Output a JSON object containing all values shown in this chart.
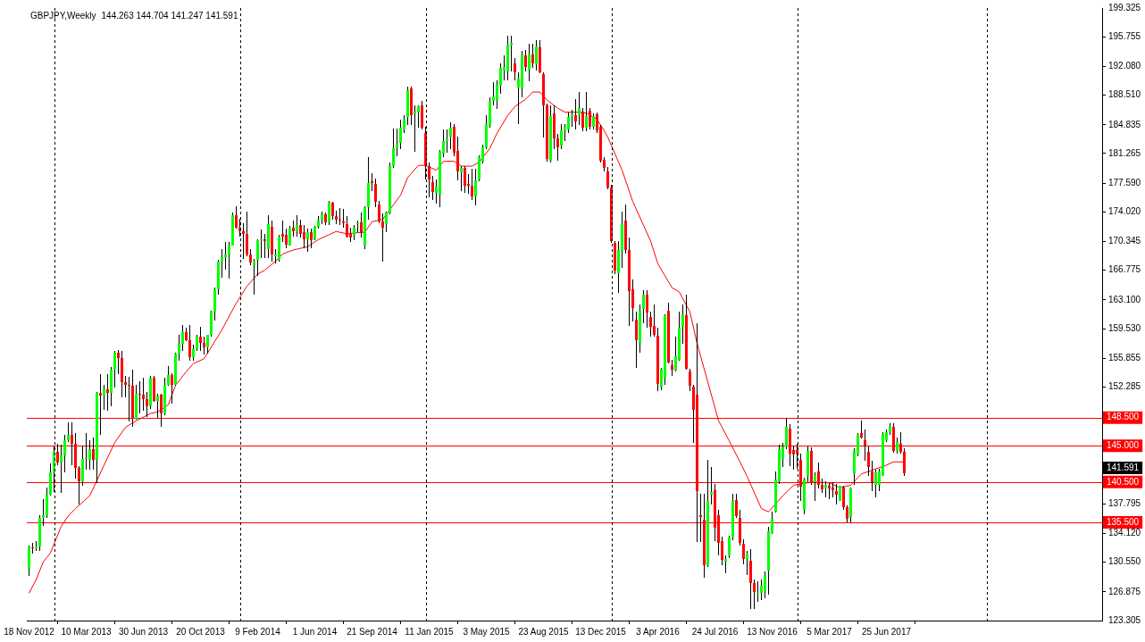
{
  "chart_data": {
    "type": "candlestick",
    "title": "GBPJPY,Weekly",
    "subtitle": "144.263 144.704 141.247 141.591",
    "x": [
      "2012-11-18",
      "2012-11-25",
      "2012-12-02",
      "2012-12-09",
      "2012-12-16",
      "2012-12-23",
      "2012-12-30",
      "2013-01-06",
      "2013-01-13",
      "2013-01-20",
      "2013-01-27",
      "2013-02-03",
      "2013-02-10",
      "2013-02-17",
      "2013-02-24",
      "2013-03-03",
      "2013-03-10",
      "2013-03-17",
      "2013-03-24",
      "2013-03-31",
      "2013-04-07",
      "2013-04-14",
      "2013-04-21",
      "2013-04-28",
      "2013-05-05",
      "2013-05-12",
      "2013-05-19",
      "2013-05-26",
      "2013-06-02",
      "2013-06-09",
      "2013-06-16",
      "2013-06-23",
      "2013-06-30",
      "2013-07-07",
      "2013-07-14",
      "2013-07-21",
      "2013-07-28",
      "2013-08-04",
      "2013-08-11",
      "2013-08-18",
      "2013-08-25",
      "2013-09-01",
      "2013-09-08",
      "2013-09-15",
      "2013-09-22",
      "2013-09-29",
      "2013-10-06",
      "2013-10-13",
      "2013-10-20",
      "2013-10-27",
      "2013-11-03",
      "2013-11-10",
      "2013-11-17",
      "2013-11-24",
      "2013-12-01",
      "2013-12-08",
      "2013-12-15",
      "2013-12-22",
      "2013-12-29",
      "2014-01-05",
      "2014-01-12",
      "2014-01-19",
      "2014-01-26",
      "2014-02-02",
      "2014-02-09",
      "2014-02-16",
      "2014-02-23",
      "2014-03-02",
      "2014-03-09",
      "2014-03-16",
      "2014-03-23",
      "2014-03-30",
      "2014-04-06",
      "2014-04-13",
      "2014-04-20",
      "2014-04-27",
      "2014-05-04",
      "2014-05-11",
      "2014-05-18",
      "2014-05-25",
      "2014-06-01",
      "2014-06-08",
      "2014-06-15",
      "2014-06-22",
      "2014-06-29",
      "2014-07-06",
      "2014-07-13",
      "2014-07-20",
      "2014-07-27",
      "2014-08-03",
      "2014-08-10",
      "2014-08-17",
      "2014-08-24",
      "2014-08-31",
      "2014-09-07",
      "2014-09-14",
      "2014-09-21",
      "2014-09-28",
      "2014-10-05",
      "2014-10-12",
      "2014-10-19",
      "2014-10-26",
      "2014-11-02",
      "2014-11-09",
      "2014-11-16",
      "2014-11-23",
      "2014-11-30",
      "2014-12-07",
      "2014-12-14",
      "2014-12-21",
      "2014-12-28",
      "2015-01-04",
      "2015-01-11",
      "2015-01-18",
      "2015-01-25",
      "2015-02-01",
      "2015-02-08",
      "2015-02-15",
      "2015-02-22",
      "2015-03-01",
      "2015-03-08",
      "2015-03-15",
      "2015-03-22",
      "2015-03-29",
      "2015-04-05",
      "2015-04-12",
      "2015-04-19",
      "2015-04-26",
      "2015-05-03",
      "2015-05-10",
      "2015-05-17",
      "2015-05-24",
      "2015-05-31",
      "2015-06-07",
      "2015-06-14",
      "2015-06-21",
      "2015-06-28",
      "2015-07-05",
      "2015-07-12",
      "2015-07-19",
      "2015-07-26",
      "2015-08-02",
      "2015-08-09",
      "2015-08-16",
      "2015-08-23",
      "2015-08-30",
      "2015-09-06",
      "2015-09-13",
      "2015-09-20",
      "2015-09-27",
      "2015-10-04",
      "2015-10-11",
      "2015-10-18",
      "2015-10-25",
      "2015-11-01",
      "2015-11-08",
      "2015-11-15",
      "2015-11-22",
      "2015-11-29",
      "2015-12-06",
      "2015-12-13",
      "2015-12-20",
      "2015-12-27",
      "2016-01-03",
      "2016-01-10",
      "2016-01-17",
      "2016-01-24",
      "2016-01-31",
      "2016-02-07",
      "2016-02-14",
      "2016-02-21",
      "2016-02-28",
      "2016-03-06",
      "2016-03-13",
      "2016-03-20",
      "2016-03-27",
      "2016-04-03",
      "2016-04-10",
      "2016-04-17",
      "2016-04-24",
      "2016-05-01",
      "2016-05-08",
      "2016-05-15",
      "2016-05-22",
      "2016-05-29",
      "2016-06-05",
      "2016-06-12",
      "2016-06-19",
      "2016-06-26",
      "2016-07-03",
      "2016-07-10",
      "2016-07-17",
      "2016-07-24",
      "2016-07-31",
      "2016-08-07",
      "2016-08-14",
      "2016-08-21",
      "2016-08-28",
      "2016-09-04",
      "2016-09-11",
      "2016-09-18",
      "2016-09-25",
      "2016-10-02",
      "2016-10-09",
      "2016-10-16",
      "2016-10-23",
      "2016-10-30",
      "2016-11-06",
      "2016-11-13",
      "2016-11-20",
      "2016-11-27",
      "2016-12-04",
      "2016-12-11",
      "2016-12-18",
      "2016-12-25",
      "2017-01-01",
      "2017-01-08",
      "2017-01-15",
      "2017-01-22",
      "2017-01-29",
      "2017-02-05",
      "2017-02-12",
      "2017-02-19",
      "2017-02-26",
      "2017-03-05",
      "2017-03-12",
      "2017-03-19",
      "2017-03-26",
      "2017-04-02",
      "2017-04-09",
      "2017-04-16",
      "2017-04-23",
      "2017-04-30",
      "2017-05-07",
      "2017-05-14",
      "2017-05-21",
      "2017-05-28",
      "2017-06-04",
      "2017-06-11",
      "2017-06-18",
      "2017-06-25",
      "2017-07-02",
      "2017-07-09",
      "2017-07-16",
      "2017-07-23",
      "2017-07-30"
    ],
    "ohlc": [
      [
        129.7,
        132.6,
        128.8,
        132.4
      ],
      [
        132.4,
        133.0,
        131.6,
        132.3
      ],
      [
        132.3,
        133.2,
        131.9,
        132.5
      ],
      [
        132.5,
        136.4,
        131.9,
        136.1
      ],
      [
        136.1,
        138.4,
        135.0,
        136.4
      ],
      [
        136.4,
        139.8,
        136.0,
        138.9
      ],
      [
        138.9,
        142.8,
        138.8,
        141.7
      ],
      [
        141.7,
        145.0,
        139.3,
        144.3
      ],
      [
        144.3,
        145.3,
        142.6,
        142.9
      ],
      [
        142.9,
        145.1,
        139.1,
        143.8
      ],
      [
        143.8,
        146.3,
        141.7,
        145.7
      ],
      [
        145.7,
        147.9,
        145.5,
        146.3
      ],
      [
        146.3,
        147.9,
        142.6,
        145.2
      ],
      [
        145.2,
        146.6,
        140.9,
        142.3
      ],
      [
        142.3,
        142.5,
        137.7,
        140.6
      ],
      [
        140.6,
        145.0,
        140.0,
        143.4
      ],
      [
        143.4,
        146.6,
        142.0,
        143.5
      ],
      [
        143.3,
        145.7,
        142.0,
        144.6
      ],
      [
        144.6,
        146.0,
        142.0,
        143.3
      ],
      [
        143.3,
        151.7,
        140.4,
        151.6
      ],
      [
        151.6,
        153.9,
        146.4,
        151.2
      ],
      [
        151.2,
        152.6,
        149.5,
        152.0
      ],
      [
        152.0,
        153.9,
        149.4,
        151.6
      ],
      [
        151.6,
        154.8,
        149.9,
        154.4
      ],
      [
        154.4,
        156.8,
        152.2,
        156.5
      ],
      [
        156.5,
        156.9,
        153.9,
        155.9
      ],
      [
        155.9,
        156.8,
        151.0,
        152.9
      ],
      [
        152.9,
        153.7,
        151.0,
        152.6
      ],
      [
        152.6,
        153.6,
        148.0,
        152.5
      ],
      [
        152.5,
        154.4,
        147.3,
        148.4
      ],
      [
        148.4,
        152.6,
        148.2,
        151.4
      ],
      [
        151.4,
        153.0,
        149.0,
        151.3
      ],
      [
        151.3,
        153.4,
        149.3,
        150.8
      ],
      [
        150.8,
        151.7,
        148.6,
        149.9
      ],
      [
        149.9,
        153.7,
        149.6,
        153.5
      ],
      [
        153.5,
        153.7,
        150.4,
        150.6
      ],
      [
        150.6,
        151.4,
        148.5,
        151.2
      ],
      [
        151.3,
        151.5,
        147.3,
        149.0
      ],
      [
        149.0,
        153.4,
        148.8,
        152.6
      ],
      [
        152.6,
        154.9,
        152.5,
        153.8
      ],
      [
        153.8,
        154.0,
        150.2,
        152.6
      ],
      [
        152.6,
        156.6,
        152.5,
        156.4
      ],
      [
        156.4,
        158.8,
        155.5,
        157.7
      ],
      [
        157.7,
        160.0,
        156.8,
        159.1
      ],
      [
        159.1,
        159.7,
        158.0,
        158.1
      ],
      [
        158.1,
        160.0,
        155.5,
        156.0
      ],
      [
        156.0,
        157.6,
        155.5,
        157.0
      ],
      [
        157.0,
        158.8,
        156.8,
        158.5
      ],
      [
        158.5,
        159.8,
        156.8,
        157.8
      ],
      [
        157.8,
        158.5,
        156.3,
        157.2
      ],
      [
        157.2,
        158.8,
        156.4,
        158.8
      ],
      [
        158.8,
        161.8,
        158.6,
        161.6
      ],
      [
        161.6,
        164.6,
        160.5,
        164.4
      ],
      [
        164.4,
        168.1,
        163.7,
        167.9
      ],
      [
        167.9,
        169.4,
        165.9,
        168.4
      ],
      [
        168.4,
        170.3,
        166.9,
        168.7
      ],
      [
        168.7,
        170.3,
        165.8,
        169.9
      ],
      [
        169.9,
        174.0,
        169.8,
        173.6
      ],
      [
        173.6,
        174.7,
        171.9,
        172.1
      ],
      [
        172.1,
        173.2,
        171.0,
        171.6
      ],
      [
        171.6,
        172.6,
        168.2,
        171.3
      ],
      [
        171.3,
        174.1,
        168.5,
        168.7
      ],
      [
        168.7,
        169.4,
        167.4,
        167.7
      ],
      [
        167.4,
        168.2,
        163.8,
        167.9
      ],
      [
        168.1,
        170.6,
        166.1,
        170.5
      ],
      [
        170.5,
        171.8,
        168.3,
        170.6
      ],
      [
        170.6,
        171.3,
        168.3,
        170.4
      ],
      [
        169.4,
        173.6,
        168.3,
        172.5
      ],
      [
        172.2,
        172.9,
        167.9,
        168.7
      ],
      [
        168.5,
        169.4,
        167.6,
        168.7
      ],
      [
        168.1,
        171.2,
        167.8,
        171.0
      ],
      [
        171.3,
        173.0,
        170.3,
        171.0
      ],
      [
        171.2,
        172.0,
        169.5,
        170.0
      ],
      [
        169.9,
        172.3,
        169.8,
        172.0
      ],
      [
        172.1,
        173.0,
        171.0,
        171.6
      ],
      [
        171.6,
        173.6,
        171.0,
        172.4
      ],
      [
        172.4,
        173.1,
        170.8,
        171.3
      ],
      [
        171.5,
        172.4,
        169.5,
        170.6
      ],
      [
        170.6,
        171.9,
        169.1,
        171.5
      ],
      [
        171.5,
        171.9,
        169.5,
        170.5
      ],
      [
        170.6,
        172.3,
        170.5,
        172.2
      ],
      [
        172.2,
        173.5,
        171.9,
        173.0
      ],
      [
        173.1,
        174.1,
        172.5,
        173.7
      ],
      [
        173.7,
        173.9,
        172.4,
        172.7
      ],
      [
        172.7,
        175.4,
        172.4,
        175.2
      ],
      [
        175.2,
        175.3,
        173.1,
        173.5
      ],
      [
        173.5,
        174.2,
        172.5,
        173.1
      ],
      [
        173.1,
        174.5,
        172.4,
        172.9
      ],
      [
        172.8,
        174.4,
        172.1,
        172.6
      ],
      [
        172.5,
        173.5,
        170.8,
        171.0
      ],
      [
        171.4,
        172.1,
        170.3,
        170.9
      ],
      [
        171.2,
        172.4,
        170.5,
        172.1
      ],
      [
        172.5,
        173.0,
        171.5,
        172.6
      ],
      [
        172.7,
        173.9,
        170.8,
        171.5
      ],
      [
        169.8,
        174.7,
        169.4,
        174.6
      ],
      [
        174.6,
        180.8,
        173.1,
        177.6
      ],
      [
        177.8,
        178.8,
        176.6,
        177.6
      ],
      [
        177.5,
        178.2,
        174.6,
        175.3
      ],
      [
        175.0,
        175.4,
        172.6,
        172.8
      ],
      [
        172.8,
        173.8,
        167.9,
        172.1
      ],
      [
        172.5,
        174.1,
        171.5,
        173.9
      ],
      [
        173.9,
        180.1,
        173.7,
        179.7
      ],
      [
        179.7,
        184.4,
        179.5,
        181.9
      ],
      [
        182.0,
        184.4,
        180.9,
        182.5
      ],
      [
        182.6,
        185.5,
        181.8,
        184.5
      ],
      [
        184.3,
        186.0,
        183.8,
        185.6
      ],
      [
        185.8,
        189.6,
        184.8,
        189.1
      ],
      [
        189.3,
        189.6,
        184.8,
        186.0
      ],
      [
        186.3,
        187.3,
        181.5,
        186.5
      ],
      [
        186.4,
        187.3,
        184.5,
        187.1
      ],
      [
        187.3,
        187.8,
        184.2,
        184.5
      ],
      [
        183.8,
        184.6,
        178.1,
        179.7
      ],
      [
        179.7,
        180.1,
        175.8,
        178.0
      ],
      [
        177.7,
        178.5,
        175.5,
        176.5
      ],
      [
        176.4,
        178.0,
        175.1,
        177.2
      ],
      [
        176.2,
        181.7,
        174.6,
        181.5
      ],
      [
        181.3,
        184.2,
        180.8,
        182.8
      ],
      [
        182.8,
        184.2,
        181.4,
        183.2
      ],
      [
        183.4,
        185.1,
        181.8,
        184.5
      ],
      [
        184.6,
        184.9,
        180.9,
        181.4
      ],
      [
        181.6,
        183.4,
        177.9,
        179.0
      ],
      [
        178.9,
        179.7,
        176.6,
        179.5
      ],
      [
        179.5,
        179.7,
        176.4,
        177.3
      ],
      [
        177.5,
        178.7,
        176.3,
        177.3
      ],
      [
        177.3,
        179.4,
        175.5,
        175.9
      ],
      [
        175.9,
        179.4,
        174.8,
        177.9
      ],
      [
        178.0,
        181.0,
        177.8,
        180.8
      ],
      [
        180.3,
        182.4,
        180.0,
        182.0
      ],
      [
        182.0,
        186.0,
        181.8,
        184.9
      ],
      [
        184.7,
        188.2,
        184.5,
        187.8
      ],
      [
        187.8,
        190.1,
        187.3,
        188.4
      ],
      [
        187.9,
        190.3,
        186.8,
        189.8
      ],
      [
        189.7,
        192.5,
        188.7,
        191.9
      ],
      [
        191.6,
        193.5,
        190.4,
        192.0
      ],
      [
        191.5,
        195.9,
        190.4,
        194.8
      ],
      [
        194.7,
        195.9,
        191.5,
        195.0
      ],
      [
        192.5,
        193.1,
        190.4,
        191.3
      ],
      [
        189.5,
        191.4,
        184.9,
        190.6
      ],
      [
        189.4,
        194.0,
        188.2,
        193.6
      ],
      [
        193.5,
        194.1,
        191.5,
        192.0
      ],
      [
        191.7,
        194.9,
        190.2,
        193.6
      ],
      [
        193.6,
        194.9,
        191.9,
        192.4
      ],
      [
        192.3,
        195.3,
        191.6,
        194.6
      ],
      [
        194.5,
        195.3,
        191.2,
        191.4
      ],
      [
        191.1,
        191.4,
        183.3,
        187.2
      ],
      [
        187.3,
        187.5,
        180.3,
        180.6
      ],
      [
        180.4,
        187.2,
        180.1,
        185.9
      ],
      [
        186.2,
        187.3,
        181.8,
        183.1
      ],
      [
        183.1,
        183.7,
        180.4,
        182.0
      ],
      [
        182.3,
        184.9,
        181.8,
        184.1
      ],
      [
        184.1,
        184.9,
        182.8,
        184.6
      ],
      [
        184.3,
        186.4,
        183.8,
        185.8
      ],
      [
        185.8,
        186.7,
        184.6,
        186.1
      ],
      [
        186.0,
        188.0,
        184.2,
        185.3
      ],
      [
        186.0,
        188.9,
        184.8,
        186.9
      ],
      [
        186.5,
        186.9,
        184.0,
        184.5
      ],
      [
        184.5,
        188.9,
        184.0,
        185.9
      ],
      [
        186.6,
        186.9,
        184.3,
        184.6
      ],
      [
        184.6,
        186.2,
        184.3,
        185.9
      ],
      [
        186.1,
        186.4,
        183.8,
        184.1
      ],
      [
        184.6,
        184.8,
        180.2,
        180.4
      ],
      [
        180.5,
        180.8,
        179.0,
        179.5
      ],
      [
        179.1,
        179.6,
        176.8,
        177.1
      ],
      [
        177.0,
        177.4,
        170.2,
        170.4
      ],
      [
        170.2,
        170.4,
        166.3,
        166.8
      ],
      [
        166.4,
        170.4,
        164.0,
        169.3
      ],
      [
        169.2,
        174.1,
        167.1,
        172.5
      ],
      [
        173.0,
        175.0,
        168.9,
        169.3
      ],
      [
        169.3,
        170.9,
        159.9,
        164.2
      ],
      [
        164.4,
        165.6,
        160.4,
        162.1
      ],
      [
        160.7,
        161.6,
        154.7,
        158.1
      ],
      [
        157.8,
        162.5,
        156.5,
        161.8
      ],
      [
        162.0,
        164.3,
        160.2,
        163.7
      ],
      [
        163.8,
        164.3,
        159.7,
        161.5
      ],
      [
        161.0,
        161.6,
        158.5,
        159.8
      ],
      [
        159.9,
        162.5,
        158.5,
        158.8
      ],
      [
        158.7,
        159.6,
        151.8,
        152.7
      ],
      [
        152.3,
        154.7,
        151.9,
        154.6
      ],
      [
        153.5,
        161.3,
        152.6,
        161.2
      ],
      [
        161.8,
        162.8,
        155.2,
        155.3
      ],
      [
        155.0,
        155.7,
        153.7,
        154.4
      ],
      [
        154.3,
        158.6,
        154.2,
        156.1
      ],
      [
        155.7,
        161.7,
        155.6,
        159.7
      ],
      [
        159.8,
        162.5,
        157.7,
        161.3
      ],
      [
        161.2,
        163.8,
        154.4,
        154.5
      ],
      [
        154.2,
        154.5,
        151.8,
        152.5
      ],
      [
        152.3,
        152.6,
        145.4,
        149.5
      ],
      [
        151.3,
        160.2,
        133.1,
        139.4
      ],
      [
        136.4,
        139.0,
        133.1,
        136.2
      ],
      [
        135.8,
        139.0,
        128.6,
        130.2
      ],
      [
        130.2,
        143.3,
        129.9,
        138.2
      ],
      [
        138.9,
        142.4,
        137.7,
        139.3
      ],
      [
        139.5,
        140.3,
        133.2,
        134.8
      ],
      [
        136.4,
        137.1,
        131.4,
        133.0
      ],
      [
        133.2,
        133.7,
        130.2,
        130.8
      ],
      [
        130.6,
        131.4,
        129.2,
        131.0
      ],
      [
        131.4,
        133.8,
        131.1,
        133.6
      ],
      [
        133.6,
        139.0,
        133.3,
        138.2
      ],
      [
        138.3,
        139.0,
        136.0,
        136.3
      ],
      [
        136.1,
        137.0,
        132.6,
        133.0
      ],
      [
        132.8,
        133.4,
        130.3,
        130.9
      ],
      [
        130.9,
        132.0,
        129.0,
        131.6
      ],
      [
        130.7,
        132.2,
        124.7,
        128.0
      ],
      [
        128.0,
        128.4,
        124.7,
        126.9
      ],
      [
        126.7,
        128.2,
        125.6,
        126.9
      ],
      [
        126.7,
        128.4,
        125.9,
        127.6
      ],
      [
        127.0,
        129.4,
        126.1,
        129.0
      ],
      [
        129.5,
        134.9,
        126.5,
        134.4
      ],
      [
        134.2,
        136.8,
        134.0,
        135.9
      ],
      [
        136.8,
        141.8,
        136.7,
        140.8
      ],
      [
        140.6,
        145.1,
        140.3,
        144.6
      ],
      [
        143.4,
        145.4,
        142.4,
        144.9
      ],
      [
        144.9,
        148.5,
        144.6,
        147.3
      ],
      [
        147.1,
        147.7,
        142.5,
        144.0
      ],
      [
        144.5,
        145.0,
        142.0,
        143.9
      ],
      [
        144.5,
        145.2,
        142.1,
        144.0
      ],
      [
        143.3,
        144.0,
        138.2,
        139.9
      ],
      [
        137.1,
        141.0,
        136.5,
        140.8
      ],
      [
        141.3,
        144.9,
        140.5,
        144.4
      ],
      [
        144.4,
        144.8,
        140.1,
        140.4
      ],
      [
        140.5,
        141.7,
        138.1,
        141.4
      ],
      [
        141.8,
        142.9,
        139.7,
        140.1
      ],
      [
        140.1,
        140.9,
        139.2,
        139.6
      ],
      [
        139.7,
        140.6,
        138.6,
        140.1
      ],
      [
        140.0,
        140.4,
        138.4,
        139.7
      ],
      [
        139.8,
        140.5,
        138.6,
        139.5
      ],
      [
        139.4,
        140.3,
        137.7,
        138.9
      ],
      [
        138.3,
        140.0,
        138.2,
        139.9
      ],
      [
        139.8,
        140.0,
        137.0,
        137.4
      ],
      [
        137.4,
        137.6,
        135.5,
        135.9
      ],
      [
        136.2,
        139.8,
        135.5,
        139.7
      ],
      [
        141.6,
        144.7,
        140.1,
        144.4
      ],
      [
        143.9,
        146.6,
        143.7,
        146.3
      ],
      [
        146.6,
        148.1,
        145.9,
        146.0
      ],
      [
        145.7,
        147.0,
        143.1,
        145.0
      ],
      [
        144.2,
        144.9,
        141.3,
        142.4
      ],
      [
        141.8,
        143.1,
        139.4,
        140.5
      ],
      [
        140.1,
        142.0,
        138.6,
        141.7
      ],
      [
        140.1,
        142.1,
        139.4,
        141.8
      ],
      [
        141.4,
        146.7,
        141.3,
        146.5
      ],
      [
        145.7,
        147.0,
        145.5,
        146.7
      ],
      [
        146.7,
        147.8,
        146.3,
        147.4
      ],
      [
        147.4,
        147.8,
        144.1,
        144.4
      ],
      [
        144.4,
        146.0,
        144.0,
        145.5
      ],
      [
        145.2,
        146.7,
        144.0,
        144.2
      ],
      [
        144.263,
        144.704,
        141.247,
        141.591
      ]
    ],
    "series": [
      {
        "type": "line",
        "color": "#ff0000",
        "x": [
          "2012-11-18",
          "2012-12-02",
          "2012-12-16",
          "2012-12-30",
          "2013-01-20",
          "2013-02-03",
          "2013-02-17",
          "2013-03-17",
          "2013-03-31",
          "2013-04-14",
          "2013-05-05",
          "2013-05-26",
          "2013-06-16",
          "2013-07-14",
          "2013-07-28",
          "2013-08-18",
          "2013-09-01",
          "2013-09-22",
          "2013-10-06",
          "2013-10-27",
          "2013-12-01",
          "2013-12-29",
          "2014-01-19",
          "2014-02-09",
          "2014-02-23",
          "2014-03-16",
          "2014-03-30",
          "2014-04-20",
          "2014-05-18",
          "2014-06-08",
          "2014-06-29",
          "2014-07-13",
          "2014-08-03",
          "2014-08-17",
          "2014-09-07",
          "2014-09-21",
          "2014-10-12",
          "2014-10-26",
          "2014-11-16",
          "2014-11-30",
          "2014-12-21",
          "2015-01-04",
          "2015-01-25",
          "2015-02-08",
          "2015-03-01",
          "2015-03-15",
          "2015-04-05",
          "2015-04-19",
          "2015-05-10",
          "2015-05-24",
          "2015-06-14",
          "2015-06-28",
          "2015-07-19",
          "2015-08-02",
          "2015-08-16",
          "2015-08-30",
          "2015-09-20",
          "2015-10-04",
          "2015-11-01",
          "2015-11-15",
          "2015-12-06",
          "2015-12-20",
          "2015-12-27",
          "2016-01-24",
          "2016-02-14",
          "2016-03-20",
          "2016-04-03",
          "2016-05-01",
          "2016-05-15",
          "2016-06-05",
          "2016-06-19",
          "2016-07-10",
          "2016-07-31",
          "2016-08-21",
          "2016-09-11",
          "2016-09-25",
          "2016-10-23",
          "2016-11-06",
          "2016-12-04",
          "2016-12-25",
          "2017-01-29",
          "2017-03-05",
          "2017-03-26",
          "2017-04-16",
          "2017-05-07",
          "2017-06-04",
          "2017-06-25",
          "2017-07-09",
          "2017-07-30"
        ],
        "values": [
          126.7,
          128.4,
          130.6,
          131.7,
          135.0,
          136.3,
          137.2,
          138.8,
          140.7,
          142.6,
          145.4,
          147.3,
          148.1,
          149.0,
          149.2,
          150.1,
          152.5,
          154.2,
          155.2,
          155.8,
          159.4,
          162.7,
          164.8,
          166.3,
          166.8,
          167.9,
          168.8,
          169.3,
          169.7,
          170.6,
          171.2,
          171.6,
          171.3,
          171.4,
          171.5,
          172.8,
          173.1,
          174.3,
          176.1,
          178.3,
          179.8,
          179.8,
          179.2,
          180.3,
          180.3,
          179.7,
          179.7,
          180.2,
          181.9,
          183.8,
          186.0,
          187.1,
          188.0,
          188.9,
          188.9,
          187.9,
          186.9,
          186.4,
          186.4,
          186.3,
          185.5,
          184.1,
          183.3,
          179.2,
          175.3,
          170.4,
          167.6,
          164.6,
          164.1,
          161.6,
          157.7,
          152.9,
          148.1,
          145.6,
          143.0,
          141.2,
          137.2,
          136.8,
          138.8,
          140.1,
          140.5,
          140.4,
          139.8,
          140.1,
          141.5,
          null,
          142.6,
          143.0,
          143.0
        ]
      }
    ],
    "xlim": [
      "2012-11-13T15:00",
      "2018-08-21T15:00"
    ],
    "xticks": [
      {
        "value": "2012-11-18",
        "label": "18 Nov 2012"
      },
      {
        "value": "2013-03-10",
        "label": "10 Mar 2013"
      },
      {
        "value": "2013-06-30",
        "label": "30 Jun 2013"
      },
      {
        "value": "2013-10-20",
        "label": "20 Oct 2013"
      },
      {
        "value": "2014-02-09",
        "label": "9 Feb 2014"
      },
      {
        "value": "2014-06-01",
        "label": "1 Jun 2014"
      },
      {
        "value": "2014-09-21",
        "label": "21 Sep 2014"
      },
      {
        "value": "2015-01-11",
        "label": "11 Jan 2015"
      },
      {
        "value": "2015-05-03",
        "label": "3 May 2015"
      },
      {
        "value": "2015-08-23",
        "label": "23 Aug 2015"
      },
      {
        "value": "2015-12-13",
        "label": "13 Dec 2015"
      },
      {
        "value": "2016-04-03",
        "label": "3 Apr 2016"
      },
      {
        "value": "2016-07-24",
        "label": "24 Jul 2016"
      },
      {
        "value": "2016-11-13",
        "label": "13 Nov 2016"
      },
      {
        "value": "2017-03-05",
        "label": "5 Mar 2017"
      },
      {
        "value": "2017-06-25",
        "label": "25 Jun 2017"
      }
    ],
    "ylim": [
      123.305,
      199.325
    ],
    "yticks": [
      123.305,
      126.875,
      {
        "value": 130.55,
        "label": "130.550"
      },
      {
        "value": 134.12,
        "label": "134.120"
      },
      137.795,
      152.285,
      155.855,
      {
        "value": 159.53,
        "label": "159.530"
      },
      {
        "value": 163.1,
        "label": "163.100"
      },
      166.775,
      170.345,
      {
        "value": 174.02,
        "label": "174.020"
      },
      {
        "value": 177.59,
        "label": "177.590"
      },
      181.265,
      184.835,
      {
        "value": 188.51,
        "label": "188.510"
      },
      {
        "value": 192.08,
        "label": "192.080"
      },
      195.755,
      199.325
    ],
    "ref_lines": [
      {
        "axis": "y",
        "value": 148.5,
        "label": "148.500",
        "color": "#ff0000"
      },
      {
        "axis": "y",
        "value": 145.0,
        "label": "145.000",
        "color": "#ff0000"
      },
      {
        "axis": "y",
        "value": 140.5,
        "label": "140.500",
        "color": "#ff0000"
      },
      {
        "axis": "y",
        "value": 135.5,
        "label": "135.500",
        "color": "#ff0000"
      },
      {
        "axis": "x",
        "value": "2013-01-06",
        "color": "#000000",
        "line_style": "dashed"
      },
      {
        "axis": "x",
        "value": "2014-01-05",
        "color": "#000000",
        "line_style": "dashed"
      },
      {
        "axis": "x",
        "value": "2015-01-04",
        "color": "#000000",
        "line_style": "dashed"
      },
      {
        "axis": "x",
        "value": "2016-01-03",
        "color": "#000000",
        "line_style": "dashed"
      },
      {
        "axis": "x",
        "value": "2017-01-01",
        "color": "#000000",
        "line_style": "dashed"
      },
      {
        "axis": "x",
        "value": "2018-01-07",
        "color": "#000000",
        "line_style": "dashed"
      }
    ],
    "annotations": [
      "141.591"
    ]
  }
}
